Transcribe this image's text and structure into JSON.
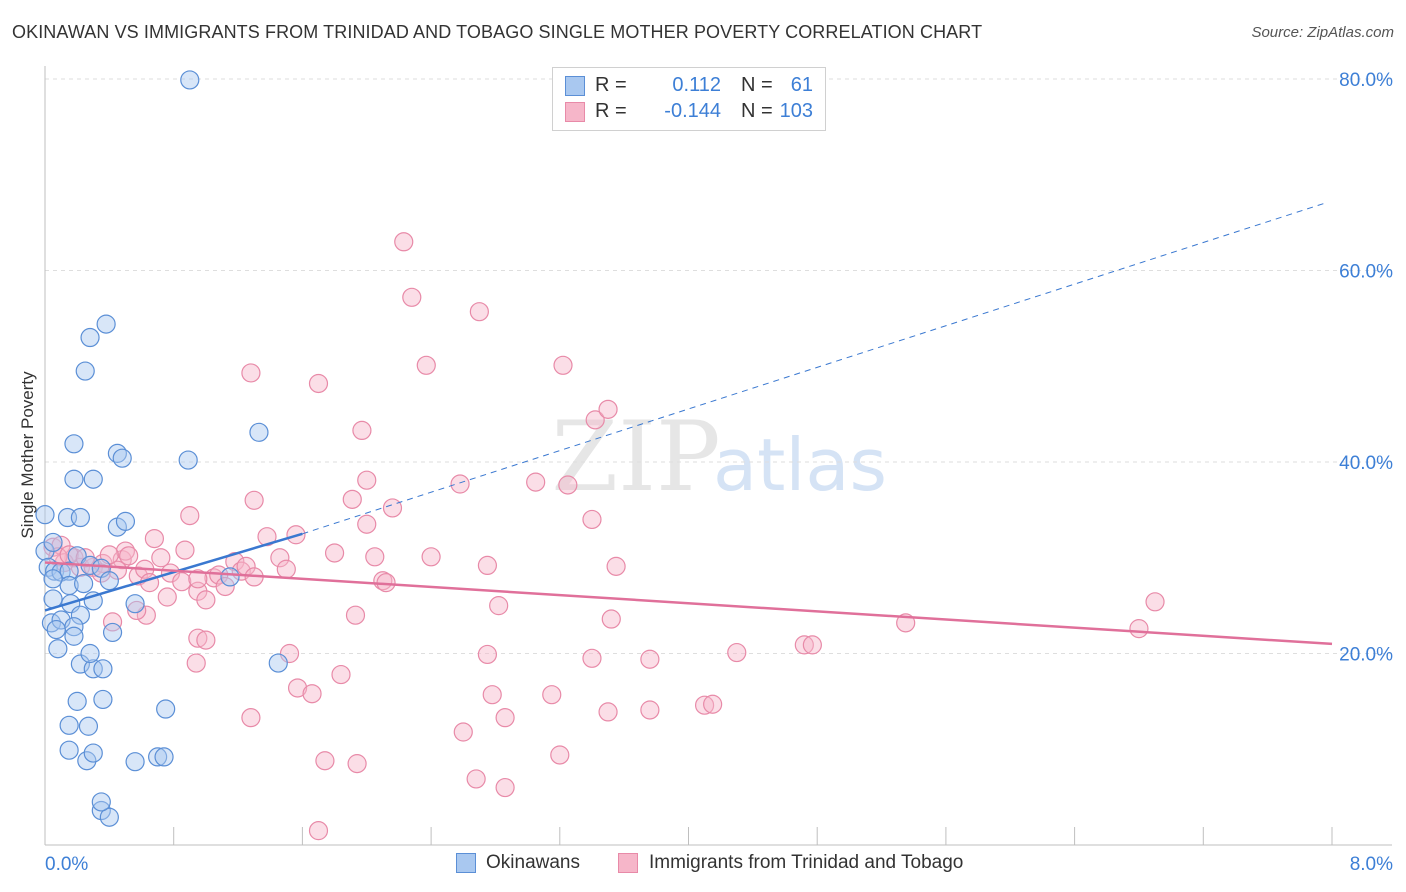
{
  "title": "OKINAWAN VS IMMIGRANTS FROM TRINIDAD AND TOBAGO SINGLE MOTHER POVERTY CORRELATION CHART",
  "source": "Source: ZipAtlas.com",
  "watermark": {
    "zip": "ZIP",
    "atlas": "atlas"
  },
  "colors": {
    "blue_fill": "#a9c8f0",
    "blue_stroke": "#5b8fd6",
    "blue_line": "#3a78d0",
    "pink_fill": "#f6b6c9",
    "pink_stroke": "#e88aa8",
    "pink_line": "#e0709a",
    "axis_label": "#3d7fd6"
  },
  "stats": {
    "rows": [
      {
        "r_label": "R =",
        "r_value": "0.112",
        "n_label": "N =",
        "n_value": "61"
      },
      {
        "r_label": "R =",
        "r_value": "-0.144",
        "n_label": "N =",
        "n_value": "103"
      }
    ]
  },
  "legend": {
    "items": [
      "Okinawans",
      "Immigrants from Trinidad and Tobago"
    ]
  },
  "chart_data": {
    "type": "scatter",
    "title": "OKINAWAN VS IMMIGRANTS FROM TRINIDAD AND TOBAGO SINGLE MOTHER POVERTY CORRELATION CHART",
    "xlabel": "",
    "ylabel": "Single Mother Poverty",
    "xlim": [
      0,
      8
    ],
    "ylim": [
      0,
      80
    ],
    "x_ticks": [
      "0.0%",
      "8.0%"
    ],
    "y_ticks": [
      "20.0%",
      "40.0%",
      "60.0%",
      "80.0%"
    ],
    "y_tick_values": [
      20,
      40,
      60,
      80
    ],
    "series": [
      {
        "name": "Okinawans",
        "trend": {
          "x0": 0,
          "y0": 24.5,
          "x1": 1.6,
          "y1": 32.5,
          "dash_to_x": 7.95,
          "dash_to_y": 67
        },
        "points": [
          [
            0.0,
            34.5
          ],
          [
            0.0,
            30.7
          ],
          [
            0.05,
            31.6
          ],
          [
            0.02,
            29.0
          ],
          [
            0.06,
            28.6
          ],
          [
            0.1,
            28.5
          ],
          [
            0.15,
            28.6
          ],
          [
            0.2,
            30.2
          ],
          [
            0.28,
            29.2
          ],
          [
            0.35,
            28.9
          ],
          [
            0.05,
            25.7
          ],
          [
            0.04,
            23.2
          ],
          [
            0.1,
            23.5
          ],
          [
            0.16,
            25.2
          ],
          [
            0.22,
            24.0
          ],
          [
            0.3,
            25.5
          ],
          [
            0.4,
            27.6
          ],
          [
            0.15,
            27.1
          ],
          [
            0.24,
            27.3
          ],
          [
            0.07,
            22.5
          ],
          [
            0.18,
            22.8
          ],
          [
            0.08,
            20.5
          ],
          [
            0.18,
            21.8
          ],
          [
            0.42,
            22.2
          ],
          [
            0.22,
            18.9
          ],
          [
            0.3,
            18.4
          ],
          [
            0.36,
            18.4
          ],
          [
            0.28,
            20.0
          ],
          [
            0.2,
            15.0
          ],
          [
            0.36,
            15.2
          ],
          [
            0.15,
            12.5
          ],
          [
            0.27,
            12.4
          ],
          [
            0.15,
            9.9
          ],
          [
            0.26,
            8.8
          ],
          [
            0.3,
            9.6
          ],
          [
            0.56,
            8.7
          ],
          [
            0.7,
            9.2
          ],
          [
            0.74,
            9.2
          ],
          [
            0.35,
            3.6
          ],
          [
            0.4,
            2.9
          ],
          [
            0.35,
            4.5
          ],
          [
            0.14,
            34.2
          ],
          [
            0.22,
            34.2
          ],
          [
            0.45,
            33.2
          ],
          [
            0.5,
            33.8
          ],
          [
            0.18,
            38.2
          ],
          [
            0.3,
            38.2
          ],
          [
            0.18,
            41.9
          ],
          [
            0.45,
            40.9
          ],
          [
            0.48,
            40.4
          ],
          [
            0.89,
            40.2
          ],
          [
            0.25,
            49.5
          ],
          [
            0.28,
            53.0
          ],
          [
            0.38,
            54.4
          ],
          [
            0.56,
            25.2
          ],
          [
            0.75,
            14.2
          ],
          [
            1.15,
            28.0
          ],
          [
            1.33,
            43.1
          ],
          [
            1.45,
            19.0
          ],
          [
            0.9,
            79.9
          ],
          [
            0.05,
            27.8
          ]
        ]
      },
      {
        "name": "Immigrants from Trinidad and Tobago",
        "trend": {
          "x0": 0,
          "y0": 29.5,
          "x1": 8.0,
          "y1": 21.0
        },
        "points": [
          [
            0.05,
            31.1
          ],
          [
            0.1,
            31.3
          ],
          [
            0.18,
            30.0
          ],
          [
            0.22,
            29.0
          ],
          [
            0.12,
            29.5
          ],
          [
            0.3,
            29.0
          ],
          [
            0.36,
            29.4
          ],
          [
            0.48,
            29.8
          ],
          [
            0.5,
            30.7
          ],
          [
            0.52,
            30.2
          ],
          [
            0.35,
            28.4
          ],
          [
            0.45,
            28.7
          ],
          [
            0.58,
            28.1
          ],
          [
            0.62,
            28.8
          ],
          [
            0.72,
            30.0
          ],
          [
            0.78,
            28.4
          ],
          [
            0.68,
            32.0
          ],
          [
            0.85,
            27.5
          ],
          [
            0.87,
            30.8
          ],
          [
            0.9,
            34.4
          ],
          [
            0.95,
            26.5
          ],
          [
            0.76,
            25.9
          ],
          [
            0.63,
            24.0
          ],
          [
            0.57,
            24.5
          ],
          [
            0.42,
            23.3
          ],
          [
            1.0,
            25.6
          ],
          [
            1.05,
            27.9
          ],
          [
            1.08,
            28.2
          ],
          [
            1.12,
            27.0
          ],
          [
            1.18,
            29.6
          ],
          [
            1.22,
            28.6
          ],
          [
            1.25,
            29.1
          ],
          [
            1.3,
            28.0
          ],
          [
            1.38,
            32.2
          ],
          [
            1.46,
            30.0
          ],
          [
            1.5,
            28.8
          ],
          [
            1.56,
            32.4
          ],
          [
            0.95,
            21.6
          ],
          [
            1.0,
            21.4
          ],
          [
            0.94,
            19.0
          ],
          [
            1.28,
            13.3
          ],
          [
            1.52,
            20.0
          ],
          [
            1.57,
            16.4
          ],
          [
            1.66,
            15.8
          ],
          [
            1.7,
            48.2
          ],
          [
            1.84,
            17.8
          ],
          [
            1.93,
            24.0
          ],
          [
            1.91,
            36.1
          ],
          [
            1.97,
            43.3
          ],
          [
            2.0,
            38.1
          ],
          [
            2.05,
            30.1
          ],
          [
            2.1,
            27.6
          ],
          [
            2.12,
            27.4
          ],
          [
            2.16,
            35.2
          ],
          [
            1.28,
            49.3
          ],
          [
            1.3,
            36.0
          ],
          [
            1.74,
            8.8
          ],
          [
            1.94,
            8.5
          ],
          [
            1.7,
            1.5
          ],
          [
            2.23,
            63.0
          ],
          [
            2.28,
            57.2
          ],
          [
            2.37,
            50.1
          ],
          [
            2.4,
            30.1
          ],
          [
            2.58,
            37.7
          ],
          [
            2.6,
            11.8
          ],
          [
            2.75,
            29.2
          ],
          [
            2.7,
            55.7
          ],
          [
            2.82,
            25.0
          ],
          [
            2.75,
            19.9
          ],
          [
            2.78,
            15.7
          ],
          [
            2.86,
            13.3
          ],
          [
            2.68,
            6.9
          ],
          [
            2.86,
            6.0
          ],
          [
            3.05,
            37.9
          ],
          [
            3.15,
            15.7
          ],
          [
            3.22,
            50.1
          ],
          [
            3.25,
            37.6
          ],
          [
            3.2,
            9.4
          ],
          [
            3.4,
            34.0
          ],
          [
            3.42,
            44.4
          ],
          [
            3.5,
            45.5
          ],
          [
            3.4,
            19.5
          ],
          [
            3.5,
            13.9
          ],
          [
            3.55,
            29.1
          ],
          [
            3.52,
            23.6
          ],
          [
            3.76,
            19.4
          ],
          [
            3.76,
            14.1
          ],
          [
            4.1,
            14.6
          ],
          [
            4.15,
            14.7
          ],
          [
            4.3,
            20.1
          ],
          [
            4.72,
            20.9
          ],
          [
            4.77,
            20.9
          ],
          [
            5.35,
            23.2
          ],
          [
            6.8,
            22.6
          ],
          [
            6.9,
            25.4
          ],
          [
            0.08,
            30.1
          ],
          [
            0.15,
            30.3
          ],
          [
            0.25,
            30.0
          ],
          [
            0.4,
            30.3
          ],
          [
            1.8,
            30.5
          ],
          [
            2.0,
            33.5
          ],
          [
            0.65,
            27.4
          ],
          [
            0.95,
            27.8
          ]
        ]
      }
    ]
  }
}
